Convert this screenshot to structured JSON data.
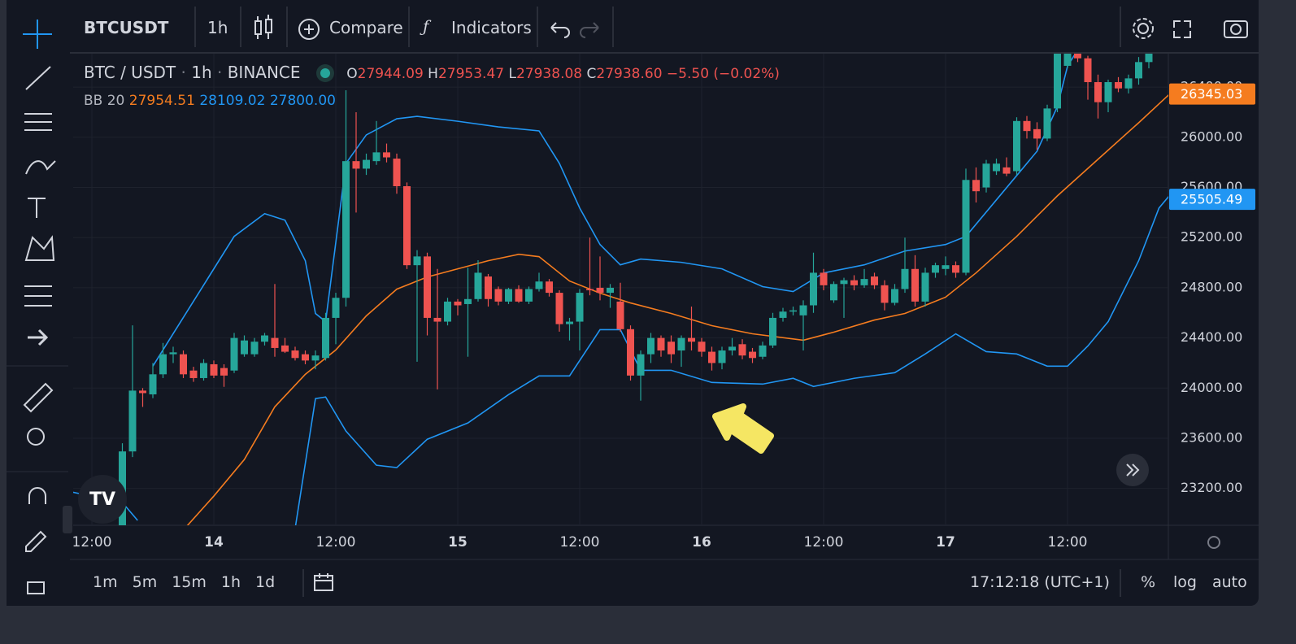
{
  "top_bar": {
    "symbol": "BTCUSDT",
    "interval": "1h",
    "compare": "Compare",
    "indicators": "Indicators"
  },
  "legend": {
    "pair": "BTC / USDT",
    "separator": "·",
    "interval": "1h",
    "exchange": "BINANCE",
    "o_label": "O",
    "o": "27944.09",
    "h_label": "H",
    "h": "27953.47",
    "l_label": "L",
    "l": "27938.08",
    "c_label": "C",
    "c": "27938.60",
    "change": "−5.50 (−0.02%)",
    "indicator": "BB",
    "period": "20",
    "basis": "27954.51",
    "upper": "28109.02",
    "lower": "27800.00"
  },
  "bottom_bar": {
    "ranges": [
      "1m",
      "5m",
      "15m",
      "1h",
      "1d"
    ],
    "time": "17:12:18 (UTC+1)",
    "percent": "%",
    "log": "log",
    "auto": "auto"
  },
  "chart_data": {
    "type": "candlestick",
    "up_color": "#26a69a",
    "down_color": "#ef5350",
    "x": [
      3,
      4,
      5,
      6,
      7,
      8,
      9,
      10,
      11,
      12,
      13,
      14,
      15,
      16,
      17,
      18,
      19,
      20,
      21,
      22,
      23,
      24,
      25,
      26,
      27,
      28,
      29,
      30,
      31,
      32,
      33,
      34,
      35,
      36,
      37,
      38,
      39,
      40,
      41,
      42,
      43,
      44,
      45,
      46,
      47,
      48,
      49,
      50,
      51,
      52,
      53,
      54,
      55,
      56,
      57,
      58,
      59,
      60,
      61,
      62,
      63,
      64,
      65,
      66,
      67,
      68,
      69,
      70,
      71,
      72,
      73,
      74,
      75,
      76,
      77,
      78,
      79,
      80,
      81,
      82,
      83,
      84,
      85,
      86,
      87,
      88,
      89,
      90,
      91,
      92,
      93,
      94,
      95,
      96,
      97,
      98,
      99,
      100,
      101,
      102,
      103,
      104
    ],
    "open": [
      22800,
      23495,
      23980,
      23950,
      24110,
      24270,
      24270,
      24140,
      24080,
      24190,
      24160,
      24140,
      24270,
      24270,
      24370,
      24400,
      24340,
      24300,
      24270,
      24220,
      24240,
      24560,
      24720,
      25810,
      25750,
      25810,
      25880,
      25830,
      25610,
      24980,
      25050,
      24560,
      24530,
      24690,
      24670,
      24710,
      24890,
      24790,
      24690,
      24790,
      24690,
      24790,
      24850,
      24760,
      24510,
      24530,
      24790,
      24800,
      24760,
      24690,
      24470,
      24100,
      24270,
      24400,
      24370,
      24300,
      24400,
      24370,
      24290,
      24200,
      24300,
      24350,
      24290,
      24250,
      24340,
      24560,
      24610,
      24580,
      24660,
      24920,
      24700,
      24830,
      24860,
      24820,
      24890,
      24820,
      24680,
      24790,
      24950,
      24690,
      24920,
      24950,
      24980,
      24920,
      25660,
      25600,
      25730,
      25760,
      25730,
      26130,
      26065,
      25990,
      26230,
      26570,
      26670,
      26630,
      26440,
      26280,
      26440,
      26390,
      26470,
      26600
    ],
    "high": [
      23560,
      24500,
      24000,
      24200,
      24360,
      24330,
      24300,
      24170,
      24230,
      24220,
      24190,
      24440,
      24420,
      24400,
      24440,
      24830,
      24400,
      24330,
      24300,
      24300,
      24600,
      24760,
      26375,
      26200,
      25870,
      26130,
      25950,
      25870,
      25640,
      25100,
      25080,
      24950,
      24720,
      24710,
      24960,
      25020,
      24910,
      24810,
      24800,
      24820,
      24810,
      24920,
      24870,
      24780,
      24560,
      24790,
      25200,
      25050,
      24830,
      24840,
      24500,
      24300,
      24440,
      24420,
      24420,
      24420,
      24650,
      24400,
      24330,
      24330,
      24400,
      24390,
      24320,
      24370,
      24600,
      24640,
      24650,
      24700,
      25080,
      24950,
      24850,
      24880,
      24900,
      24950,
      24920,
      24860,
      24830,
      25200,
      25060,
      24960,
      25000,
      25050,
      25010,
      25750,
      25760,
      25820,
      25830,
      25840,
      26160,
      26170,
      26120,
      26260,
      26700,
      26720,
      26700,
      26650,
      26500,
      26460,
      26480,
      26500,
      26640,
      26700
    ],
    "low": [
      22700,
      23450,
      23850,
      23920,
      24080,
      24200,
      24080,
      24050,
      24060,
      24080,
      24010,
      24120,
      24250,
      24250,
      24340,
      24250,
      24280,
      24220,
      24190,
      24150,
      24220,
      24350,
      24650,
      25400,
      25700,
      25780,
      25800,
      25550,
      24950,
      24210,
      24420,
      23990,
      24500,
      24580,
      24250,
      24690,
      24650,
      24660,
      24670,
      24680,
      24670,
      24770,
      24730,
      24450,
      24380,
      24300,
      24740,
      24700,
      24640,
      24450,
      24060,
      23900,
      24200,
      24250,
      24200,
      24170,
      24300,
      24250,
      24140,
      24150,
      24260,
      24230,
      24200,
      24230,
      24320,
      24530,
      24580,
      24300,
      24600,
      24780,
      24680,
      24560,
      24780,
      24800,
      24790,
      24620,
      24660,
      24760,
      24650,
      24650,
      24880,
      24900,
      24880,
      24900,
      25480,
      25560,
      25700,
      25690,
      25700,
      25990,
      25900,
      25970,
      26200,
      26550,
      26600,
      26300,
      26150,
      26200,
      26360,
      26350,
      26420,
      26550
    ],
    "close": [
      23495,
      23980,
      23960,
      24110,
      24270,
      24285,
      24110,
      24080,
      24200,
      24100,
      24100,
      24400,
      24380,
      24370,
      24420,
      24320,
      24290,
      24240,
      24220,
      24260,
      24560,
      24720,
      25810,
      25750,
      25820,
      25880,
      25840,
      25610,
      24980,
      25050,
      24560,
      24530,
      24690,
      24660,
      24710,
      24920,
      24710,
      24690,
      24790,
      24690,
      24790,
      24850,
      24760,
      24510,
      24530,
      24760,
      24780,
      24760,
      24800,
      24470,
      24100,
      24270,
      24400,
      24300,
      24270,
      24400,
      24370,
      24290,
      24200,
      24300,
      24330,
      24260,
      24240,
      24340,
      24560,
      24610,
      24620,
      24660,
      24920,
      24820,
      24830,
      24860,
      24820,
      24870,
      24820,
      24680,
      24790,
      24950,
      24690,
      24920,
      24980,
      24980,
      24920,
      25660,
      25570,
      25790,
      25790,
      25710,
      26130,
      26050,
      25990,
      26230,
      26670,
      26670,
      26630,
      26440,
      26280,
      26440,
      26390,
      26470,
      26600,
      26670
    ],
    "bands": [
      {
        "color": "#2196f3",
        "x": [
          6,
          8,
          11,
          14,
          17,
          19,
          21,
          22,
          23,
          25,
          27,
          30,
          32,
          36,
          40,
          44,
          46,
          48,
          50,
          52,
          54,
          58,
          62,
          66,
          69,
          72,
          76,
          80,
          84,
          86,
          89,
          93,
          95,
          96,
          97
        ],
        "values": [
          24175,
          24434,
          24822,
          25210,
          25391,
          25339,
          25016,
          24595,
          24530,
          25792,
          26019,
          26148,
          26167,
          26128,
          26083,
          26051,
          25792,
          25436,
          25145,
          24983,
          25029,
          25003,
          24951,
          24809,
          24770,
          24918,
          24983,
          25093,
          25145,
          25210,
          25501,
          25889,
          26245,
          26568,
          26697
        ]
      },
      {
        "color": "#f57c1f",
        "x": [
          9,
          12,
          15,
          18,
          21,
          24,
          27,
          30,
          33,
          36,
          39,
          42,
          44,
          47,
          50,
          53,
          57,
          61,
          65,
          70,
          73,
          77,
          80,
          84,
          87,
          91,
          95,
          99,
          103,
          106
        ],
        "values": [
          22868,
          23139,
          23430,
          23851,
          24110,
          24304,
          24576,
          24789,
          24886,
          24951,
          25016,
          25067,
          25048,
          24854,
          24757,
          24679,
          24595,
          24498,
          24433,
          24382,
          24446,
          24543,
          24595,
          24725,
          24919,
          25210,
          25533,
          25825,
          26116,
          26342
        ]
      },
      {
        "color": "#2196f3",
        "x": [
          -2,
          3,
          4.5,
          12,
          20,
          22,
          23,
          25,
          28,
          30,
          33,
          37,
          41,
          44,
          47,
          50,
          52,
          54,
          57,
          61,
          66,
          69,
          71,
          75,
          79,
          82,
          85,
          88,
          91,
          94,
          96,
          98,
          100,
          103,
          105,
          106
        ],
        "values": [
          23172,
          23088,
          22945,
          null,
          22880,
          23916,
          23929,
          23657,
          23385,
          23366,
          23592,
          23722,
          23948,
          24097,
          24097,
          24466,
          24466,
          24142,
          24142,
          24045,
          24032,
          24078,
          24013,
          24078,
          24123,
          24272,
          24433,
          24291,
          24272,
          24175,
          24175,
          24336,
          24530,
          25016,
          25436,
          25533
        ]
      }
    ],
    "price_tags": [
      {
        "value": 26345.03,
        "color": "#f57c1f"
      },
      {
        "value": 25505.49,
        "color": "#2196f3"
      }
    ],
    "xlim": [
      -1.84,
      105.92
    ],
    "ylim": [
      22906,
      26667
    ],
    "xticks": [
      {
        "value": 0,
        "label": "12:00"
      },
      {
        "value": 12,
        "label": "14"
      },
      {
        "value": 24,
        "label": "12:00"
      },
      {
        "value": 36,
        "label": "15"
      },
      {
        "value": 48,
        "label": "12:00"
      },
      {
        "value": 60,
        "label": "16"
      },
      {
        "value": 72,
        "label": "12:00"
      },
      {
        "value": 84,
        "label": "17"
      },
      {
        "value": 96,
        "label": "12:00"
      }
    ],
    "yticks": [
      {
        "value": 23200,
        "label": "23200.00"
      },
      {
        "value": 23600,
        "label": "23600.00"
      },
      {
        "value": 24000,
        "label": "24000.00"
      },
      {
        "value": 24400,
        "label": "24400.00"
      },
      {
        "value": 24800,
        "label": "24800.00"
      },
      {
        "value": 25200,
        "label": "25200.00"
      },
      {
        "value": 25600,
        "label": "25600.00"
      },
      {
        "value": 26000,
        "label": "26000.00"
      },
      {
        "value": 26400,
        "label": "26400.00"
      }
    ],
    "grid": true
  }
}
